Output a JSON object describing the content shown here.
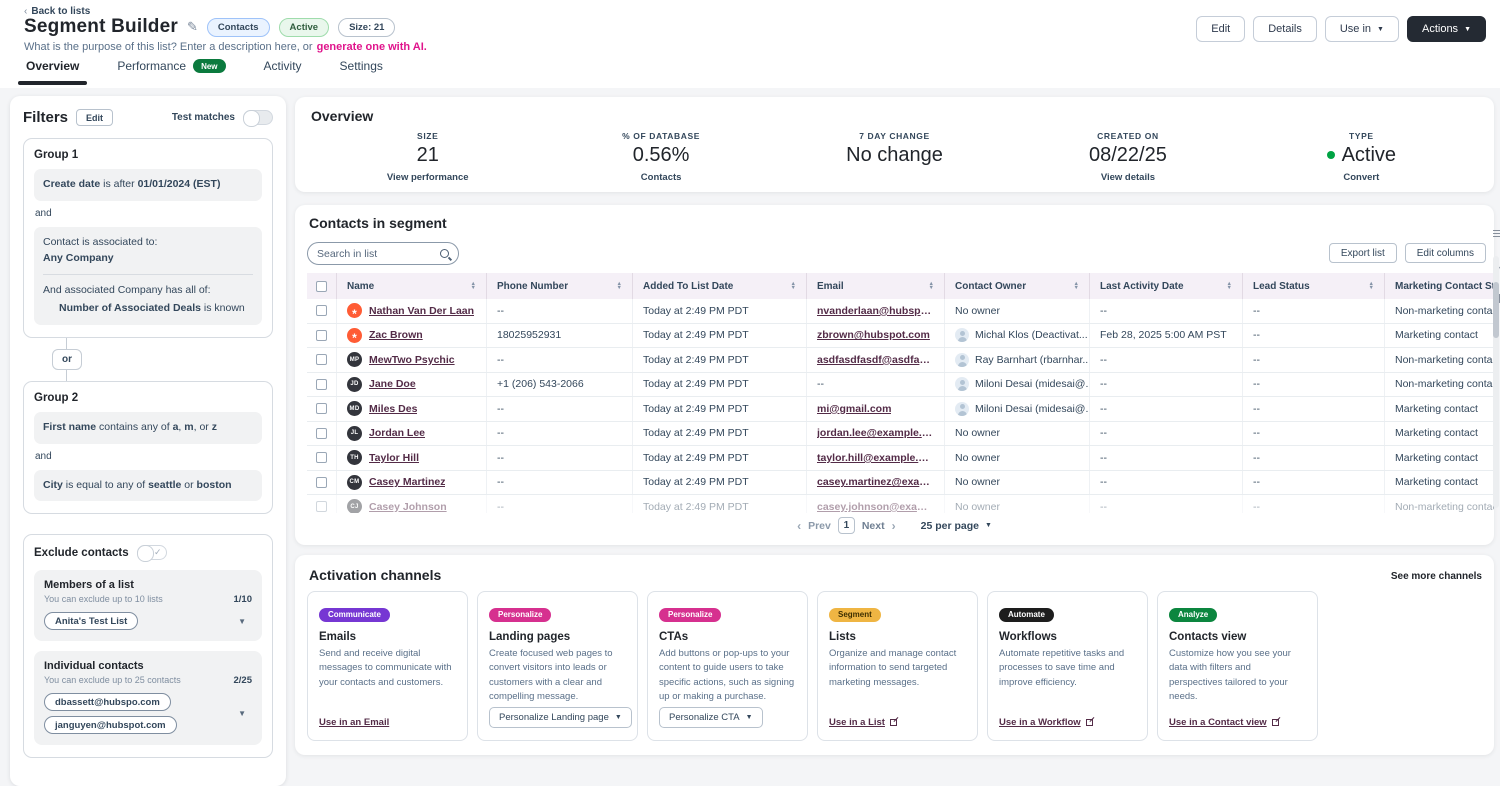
{
  "header": {
    "back": "Back to lists",
    "title": "Segment Builder",
    "badges": {
      "type": "Contacts",
      "status": "Active",
      "size": "Size: 21"
    },
    "description": "What is the purpose of this list? Enter a description here, or",
    "ai_link": "generate one with AI.",
    "buttons": {
      "edit": "Edit",
      "details": "Details",
      "use_in": "Use in",
      "actions": "Actions"
    },
    "tabs": [
      {
        "label": "Overview"
      },
      {
        "label": "Performance",
        "badge": "New"
      },
      {
        "label": "Activity"
      },
      {
        "label": "Settings"
      }
    ]
  },
  "filters": {
    "title": "Filters",
    "edit": "Edit",
    "test_matches": "Test matches",
    "group1": {
      "name": "Group 1",
      "rule1": [
        {
          "t": "Create date",
          "b": 1
        },
        {
          "t": " is after ",
          "b": 0
        },
        {
          "t": "01/01/2024 (EST)",
          "b": 1
        }
      ],
      "and": "and",
      "assoc_label": "Contact is associated to:",
      "assoc_value": "Any Company",
      "assoc_sub": "And associated Company has all of:",
      "assoc_sub_rule": [
        {
          "t": "Number of Associated Deals",
          "b": 1
        },
        {
          "t": " is known",
          "b": 0
        }
      ]
    },
    "or": "or",
    "group2": {
      "name": "Group 2",
      "rule1": [
        {
          "t": "First name",
          "b": 1
        },
        {
          "t": " contains any of ",
          "b": 0
        },
        {
          "t": "a",
          "b": 1
        },
        {
          "t": ", ",
          "b": 0
        },
        {
          "t": "m",
          "b": 1
        },
        {
          "t": ", or ",
          "b": 0
        },
        {
          "t": "z",
          "b": 1
        }
      ],
      "and": "and",
      "rule2": [
        {
          "t": "City",
          "b": 1
        },
        {
          "t": " is equal to any of ",
          "b": 0
        },
        {
          "t": "seattle",
          "b": 1
        },
        {
          "t": " or ",
          "b": 0
        },
        {
          "t": "boston",
          "b": 1
        }
      ]
    },
    "exclude": {
      "title": "Exclude contacts",
      "lists": {
        "title": "Members of a list",
        "hint": "You can exclude up to 10 lists",
        "count": "1/10",
        "chip1": "Anita's Test List"
      },
      "contacts": {
        "title": "Individual contacts",
        "hint": "You can exclude up to 25 contacts",
        "count": "2/25",
        "chip1": "dbassett@hubspo.com",
        "chip2": "janguyen@hubspot.com"
      }
    }
  },
  "overview": {
    "title": "Overview",
    "stats": [
      {
        "label": "SIZE",
        "value": "21",
        "sub": "View performance"
      },
      {
        "label": "% OF DATABASE",
        "value": "0.56%",
        "sub": "Contacts"
      },
      {
        "label": "7 DAY CHANGE",
        "value": "No change",
        "sub": ""
      },
      {
        "label": "CREATED ON",
        "value": "08/22/25",
        "sub": "View details"
      },
      {
        "label": "TYPE",
        "value": "Active",
        "sub": "Convert",
        "dot_color": "#00a344"
      }
    ]
  },
  "contacts": {
    "title": "Contacts in segment",
    "search_placeholder": "Search in list",
    "export": "Export list",
    "edit_columns": "Edit columns",
    "columns": [
      "Name",
      "Phone Number",
      "Added To List Date",
      "Email",
      "Contact Owner",
      "Last Activity Date",
      "Lead Status",
      "Marketing Contact Status"
    ],
    "rows": [
      {
        "initials": "",
        "name": "Nathan Van Der Laan",
        "phone": "--",
        "added": "Today at 2:49 PM PDT",
        "email": "nvanderlaan@hubspot.com",
        "owner": "No owner",
        "last_activity": "--",
        "lead": "--",
        "marketing": "Non-marketing contact"
      },
      {
        "initials": "",
        "name": "Zac Brown",
        "phone": "18025952931",
        "added": "Today at 2:49 PM PDT",
        "email": "zbrown@hubspot.com",
        "owner": "Michal Klos (Deactivat...",
        "last_activity": "Feb 28, 2025 5:00 AM PST",
        "lead": "--",
        "marketing": "Marketing contact"
      },
      {
        "initials": "MP",
        "name": "MewTwo Psychic",
        "phone": "--",
        "added": "Today at 2:49 PM PDT",
        "email": "asdfasdfasdf@asdfasfsdfd...",
        "owner": "Ray Barnhart (rbarnhar...",
        "last_activity": "--",
        "lead": "--",
        "marketing": "Non-marketing contact"
      },
      {
        "initials": "JD",
        "name": "Jane Doe",
        "phone": "+1 (206) 543-2066",
        "added": "Today at 2:49 PM PDT",
        "email": "--",
        "owner": "Miloni Desai (midesai@...",
        "last_activity": "--",
        "lead": "--",
        "marketing": "Non-marketing contact"
      },
      {
        "initials": "MD",
        "name": "Miles Des",
        "phone": "--",
        "added": "Today at 2:49 PM PDT",
        "email": "mi@gmail.com",
        "owner": "Miloni Desai (midesai@...",
        "last_activity": "--",
        "lead": "--",
        "marketing": "Marketing contact"
      },
      {
        "initials": "JL",
        "name": "Jordan Lee",
        "phone": "--",
        "added": "Today at 2:49 PM PDT",
        "email": "jordan.lee@example.com",
        "owner": "No owner",
        "last_activity": "--",
        "lead": "--",
        "marketing": "Marketing contact"
      },
      {
        "initials": "TH",
        "name": "Taylor Hill",
        "phone": "--",
        "added": "Today at 2:49 PM PDT",
        "email": "taylor.hill@example.com",
        "owner": "No owner",
        "last_activity": "--",
        "lead": "--",
        "marketing": "Marketing contact"
      },
      {
        "initials": "CM",
        "name": "Casey Martinez",
        "phone": "--",
        "added": "Today at 2:49 PM PDT",
        "email": "casey.martinez@example.c...",
        "owner": "No owner",
        "last_activity": "--",
        "lead": "--",
        "marketing": "Marketing contact"
      },
      {
        "initials": "CJ",
        "name": "Casey Johnson",
        "phone": "--",
        "added": "Today at 2:49 PM PDT",
        "email": "casey.johnson@example.co",
        "owner": "No owner",
        "last_activity": "--",
        "lead": "--",
        "marketing": "Non-marketing contact"
      }
    ],
    "pagination": {
      "prev": "Prev",
      "page": "1",
      "next": "Next",
      "per_page": "25 per page"
    }
  },
  "activation": {
    "title": "Activation channels",
    "see_more": "See more channels",
    "cards": [
      {
        "badge": "Communicate",
        "badge_style": "background:#7637d3;color:#ffffff",
        "title": "Emails",
        "desc": "Send and receive digital messages to communicate with your contacts and customers.",
        "action": "Use in an Email"
      },
      {
        "badge": "Personalize",
        "badge_style": "background:#d6308f;color:#ffffff",
        "title": "Landing pages",
        "desc": "Create focused web pages to convert visitors into leads or customers with a clear and compelling message.",
        "action": "Personalize Landing page"
      },
      {
        "badge": "Personalize",
        "badge_style": "background:#d6308f;color:#ffffff",
        "title": "CTAs",
        "desc": "Add buttons or pop-ups to your content to guide users to take specific actions, such as signing up or making a purchase.",
        "action": "Personalize CTA"
      },
      {
        "badge": "Segment",
        "badge_style": "background:#efb543;color:#3d2e00",
        "title": "Lists",
        "desc": "Organize and manage contact information to send targeted marketing messages.",
        "action": "Use in a List"
      },
      {
        "badge": "Automate",
        "badge_style": "background:#1d1d1d;color:#ffffff",
        "title": "Workflows",
        "desc": "Automate repetitive tasks and processes to save time and improve efficiency.",
        "action": "Use in a Workflow"
      },
      {
        "badge": "Analyze",
        "badge_style": "background:#0c863f;color:#ffffff",
        "title": "Contacts view",
        "desc": "Customize how you see your data with filters and perspectives tailored to your needs.",
        "action": "Use in a Contact view"
      }
    ]
  }
}
